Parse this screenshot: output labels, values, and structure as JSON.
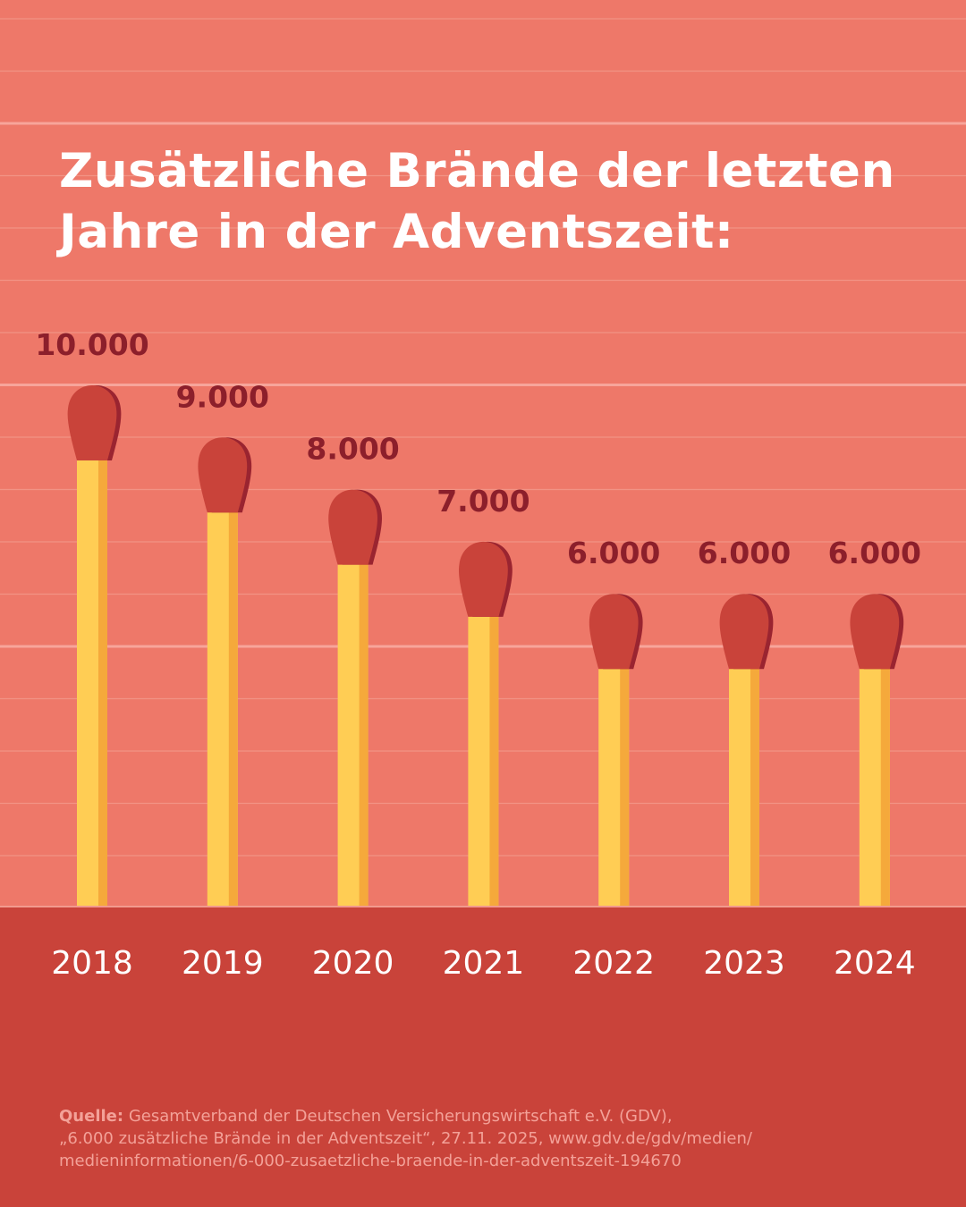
{
  "title": {
    "line1": "Zusätzliche Brände der letzten",
    "line2": "Jahre in der Adventszeit:"
  },
  "chart_data": {
    "type": "bar",
    "categories": [
      "2018",
      "2019",
      "2020",
      "2021",
      "2022",
      "2023",
      "2024"
    ],
    "values": [
      10000,
      9000,
      8000,
      7000,
      6000,
      6000,
      6000
    ],
    "data_labels": [
      "10.000",
      "9.000",
      "8.000",
      "7.000",
      "6.000",
      "6.000",
      "6.000"
    ],
    "title": "Zusätzliche Brände der letzten Jahre in der Adventszeit:",
    "xlabel": "",
    "ylabel": "",
    "ylim": [
      0,
      10000
    ],
    "grid": true,
    "bar_style": "matchsticks",
    "colors": {
      "background": "#ee7869",
      "stick": "#ffcd54",
      "stick_shade": "#f5a93b",
      "match_head": "#c9433a",
      "match_head_shade": "#9a2430",
      "value_label": "#8c1f2b",
      "footer": "#c9433a"
    }
  },
  "source": {
    "label": "Quelle:",
    "line1": "Gesamtverband der Deutschen Versicherungswirtschaft e.V. (GDV),",
    "line2": "„6.000 zusätzliche Brände in der Adventszeit“, 27.11. 2025, www.gdv.de/gdv/medien/",
    "line3": "medieninformationen/6-000-zusaetzliche-braende-in-der-adventszeit-194670"
  }
}
